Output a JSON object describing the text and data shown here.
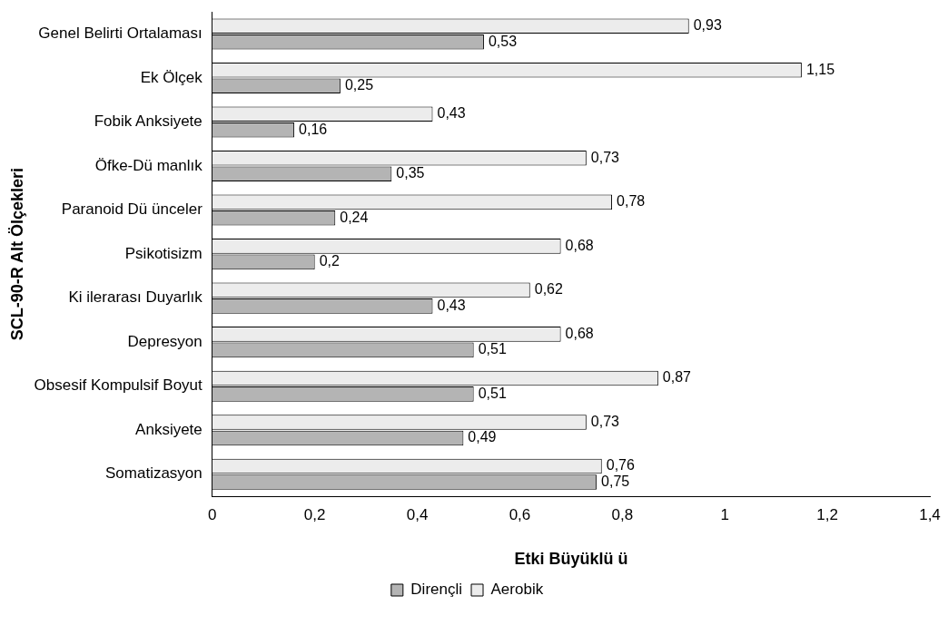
{
  "chart_data": {
    "type": "bar",
    "orientation": "horizontal",
    "xlabel": "Etki Büyüklü ü",
    "ylabel": "SCL-90-R Alt Ölçekleri",
    "categories": [
      "Genel Belirti Ortalaması",
      "Ek Ölçek",
      "Fobik Anksiyete",
      "Öfke-Dü manlık",
      "Paranoid Dü ünceler",
      "Psikotisizm",
      "Ki ilerarası Duyarlık",
      "Depresyon",
      "Obsesif Kompulsif Boyut",
      "Anksiyete",
      "Somatizasyon"
    ],
    "series": [
      {
        "name": "Aerobik",
        "color": "#ececec",
        "values": [
          0.93,
          1.15,
          0.43,
          0.73,
          0.78,
          0.68,
          0.62,
          0.68,
          0.87,
          0.73,
          0.76
        ],
        "value_labels": [
          "0,93",
          "1,15",
          "0,43",
          "0,73",
          "0,78",
          "0,68",
          "0,62",
          "0,68",
          "0,87",
          "0,73",
          "0,76"
        ]
      },
      {
        "name": "Dirençli",
        "color": "#b4b4b4",
        "values": [
          0.53,
          0.25,
          0.16,
          0.35,
          0.24,
          0.2,
          0.43,
          0.51,
          0.51,
          0.49,
          0.75
        ],
        "value_labels": [
          "0,53",
          "0,25",
          "0,16",
          "0,35",
          "0,24",
          "0,2",
          "0,43",
          "0,51",
          "0,51",
          "0,49",
          "0,75"
        ]
      }
    ],
    "xlim": [
      0,
      1.4
    ],
    "xticks": [
      0,
      {
        "value": 0.2,
        "label": "0,2"
      },
      {
        "value": 0.4,
        "label": "0,4"
      },
      {
        "value": 0.6,
        "label": "0,6"
      },
      {
        "value": 0.8,
        "label": "0,8"
      },
      1,
      {
        "value": 1.2,
        "label": "1,2"
      },
      {
        "value": 1.4,
        "label": "1,4"
      }
    ],
    "grid": false,
    "legend": "bottom"
  }
}
